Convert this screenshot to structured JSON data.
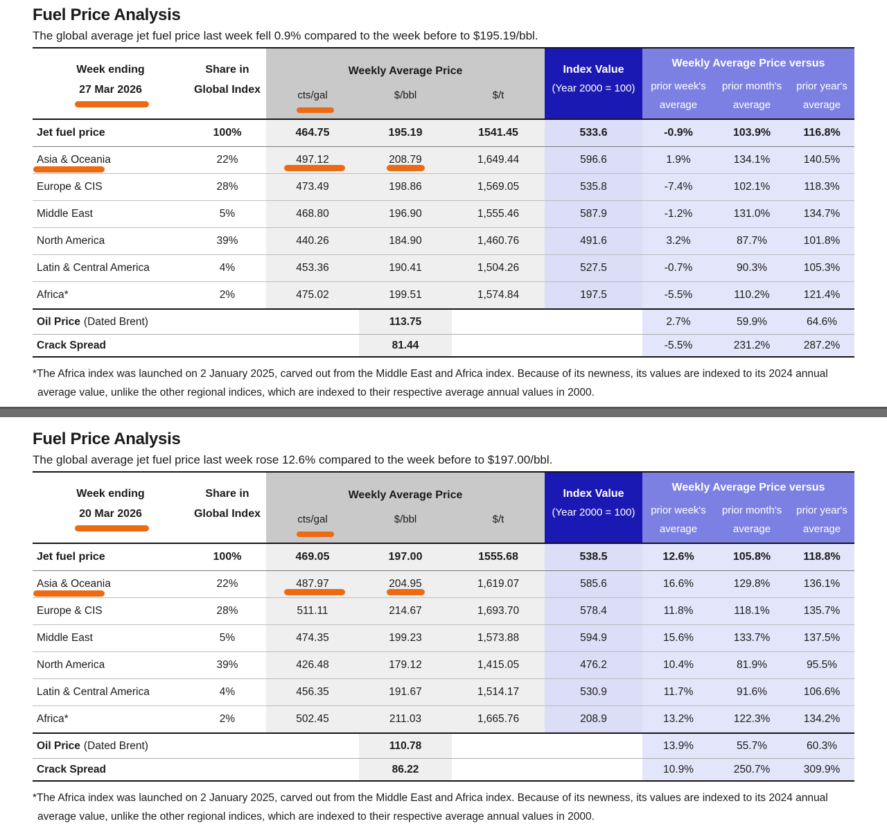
{
  "palette": {
    "header_dark_blue": "#1B19B3",
    "header_periwinkle": "#7C80E2",
    "header_gray": "#C9C9C9",
    "col_gray_fill": "#EFEFEF",
    "col_index_fill": "#DCDDF6",
    "col_versus_fill": "#E3E5FA",
    "annotation_orange": "#ED6A14",
    "separator_gray": "#6E6E6E"
  },
  "columns": {
    "week_ending": "Week ending",
    "share_line1": "Share in",
    "share_line2": "Global Index",
    "weekly_avg_price": "Weekly Average Price",
    "units": [
      "cts/gal",
      "$/bbl",
      "$/t"
    ],
    "index_value": "Index Value",
    "index_note": "(Year 2000 = 100)",
    "versus_title": "Weekly Average Price versus",
    "vs_cols": [
      {
        "l1": "prior week's",
        "l2": "average"
      },
      {
        "l1": "prior month's",
        "l2": "average"
      },
      {
        "l1": "prior year's",
        "l2": "average"
      }
    ]
  },
  "sections": [
    {
      "title": "Fuel Price Analysis",
      "subtitle": "The global average jet fuel price last week fell 0.9% compared to the week before to $195.19/bbl.",
      "date": "27 Mar 2026",
      "rows": [
        {
          "region": "Jet fuel price",
          "share": "100%",
          "cts_gal": "464.75",
          "usd_bbl": "195.19",
          "usd_t": "1541.45",
          "index": "533.6",
          "vs_week": "-0.9%",
          "vs_month": "103.9%",
          "vs_year": "116.8%"
        },
        {
          "region": "Asia & Oceania",
          "share": "22%",
          "cts_gal": "497.12",
          "usd_bbl": "208.79",
          "usd_t": "1,649.44",
          "index": "596.6",
          "vs_week": "1.9%",
          "vs_month": "134.1%",
          "vs_year": "140.5%"
        },
        {
          "region": "Europe & CIS",
          "share": "28%",
          "cts_gal": "473.49",
          "usd_bbl": "198.86",
          "usd_t": "1,569.05",
          "index": "535.8",
          "vs_week": "-7.4%",
          "vs_month": "102.1%",
          "vs_year": "118.3%"
        },
        {
          "region": "Middle East",
          "share": "5%",
          "cts_gal": "468.80",
          "usd_bbl": "196.90",
          "usd_t": "1,555.46",
          "index": "587.9",
          "vs_week": "-1.2%",
          "vs_month": "131.0%",
          "vs_year": "134.7%"
        },
        {
          "region": "North America",
          "share": "39%",
          "cts_gal": "440.26",
          "usd_bbl": "184.90",
          "usd_t": "1,460.76",
          "index": "491.6",
          "vs_week": "3.2%",
          "vs_month": "87.7%",
          "vs_year": "101.8%"
        },
        {
          "region": "Latin & Central America",
          "share": "4%",
          "cts_gal": "453.36",
          "usd_bbl": "190.41",
          "usd_t": "1,504.26",
          "index": "527.5",
          "vs_week": "-0.7%",
          "vs_month": "90.3%",
          "vs_year": "105.3%"
        },
        {
          "region": "Africa*",
          "share": "2%",
          "cts_gal": "475.02",
          "usd_bbl": "199.51",
          "usd_t": "1,574.84",
          "index": "197.5",
          "vs_week": "-5.5%",
          "vs_month": "110.2%",
          "vs_year": "121.4%"
        }
      ],
      "oil": {
        "label": "Oil Price",
        "label_note": "(Dated Brent)",
        "usd_bbl": "113.75",
        "vs_week": "2.7%",
        "vs_month": "59.9%",
        "vs_year": "64.6%"
      },
      "crack": {
        "label": "Crack Spread",
        "usd_bbl": "81.44",
        "vs_week": "-5.5%",
        "vs_month": "231.2%",
        "vs_year": "287.2%"
      },
      "footnote": [
        "*The Africa index was launched on 2 January 2025, carved out from the Middle East and Africa index. Because of its newness, its values are indexed  to its 2024 annual",
        "average value, unlike the other regional indices, which are indexed to their respective average annual values in 2000."
      ]
    },
    {
      "title": "Fuel Price Analysis",
      "subtitle": "The global average jet fuel price last week rose 12.6% compared to the week before to $197.00/bbl.",
      "date": "20 Mar 2026",
      "rows": [
        {
          "region": "Jet fuel price",
          "share": "100%",
          "cts_gal": "469.05",
          "usd_bbl": "197.00",
          "usd_t": "1555.68",
          "index": "538.5",
          "vs_week": "12.6%",
          "vs_month": "105.8%",
          "vs_year": "118.8%"
        },
        {
          "region": "Asia & Oceania",
          "share": "22%",
          "cts_gal": "487.97",
          "usd_bbl": "204.95",
          "usd_t": "1,619.07",
          "index": "585.6",
          "vs_week": "16.6%",
          "vs_month": "129.8%",
          "vs_year": "136.1%"
        },
        {
          "region": "Europe & CIS",
          "share": "28%",
          "cts_gal": "511.11",
          "usd_bbl": "214.67",
          "usd_t": "1,693.70",
          "index": "578.4",
          "vs_week": "11.8%",
          "vs_month": "118.1%",
          "vs_year": "135.7%"
        },
        {
          "region": "Middle East",
          "share": "5%",
          "cts_gal": "474.35",
          "usd_bbl": "199.23",
          "usd_t": "1,573.88",
          "index": "594.9",
          "vs_week": "15.6%",
          "vs_month": "133.7%",
          "vs_year": "137.5%"
        },
        {
          "region": "North America",
          "share": "39%",
          "cts_gal": "426.48",
          "usd_bbl": "179.12",
          "usd_t": "1,415.05",
          "index": "476.2",
          "vs_week": "10.4%",
          "vs_month": "81.9%",
          "vs_year": "95.5%"
        },
        {
          "region": "Latin & Central America",
          "share": "4%",
          "cts_gal": "456.35",
          "usd_bbl": "191.67",
          "usd_t": "1,514.17",
          "index": "530.9",
          "vs_week": "11.7%",
          "vs_month": "91.6%",
          "vs_year": "106.6%"
        },
        {
          "region": "Africa*",
          "share": "2%",
          "cts_gal": "502.45",
          "usd_bbl": "211.03",
          "usd_t": "1,665.76",
          "index": "208.9",
          "vs_week": "13.2%",
          "vs_month": "122.3%",
          "vs_year": "134.2%"
        }
      ],
      "oil": {
        "label": "Oil Price",
        "label_note": "(Dated Brent)",
        "usd_bbl": "110.78",
        "vs_week": "13.9%",
        "vs_month": "55.7%",
        "vs_year": "60.3%"
      },
      "crack": {
        "label": "Crack Spread",
        "usd_bbl": "86.22",
        "vs_week": "10.9%",
        "vs_month": "250.7%",
        "vs_year": "309.9%"
      },
      "footnote": [
        "*The Africa index was launched on 2 January 2025, carved out from the Middle East and Africa index. Because of its newness, its values are indexed  to its 2024 annual",
        "average value, unlike the other regional indices, which are indexed to their respective average annual values in 2000."
      ]
    }
  ]
}
